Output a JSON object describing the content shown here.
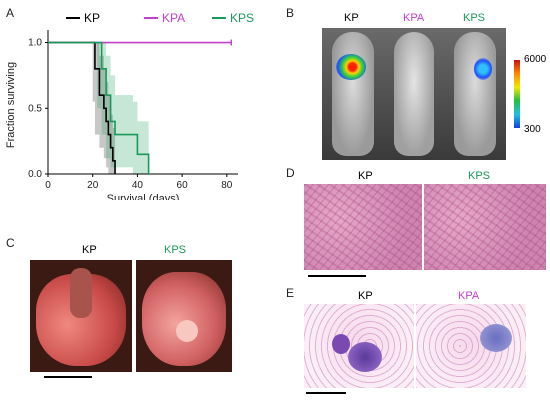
{
  "panels": {
    "A": "A",
    "B": "B",
    "C": "C",
    "D": "D",
    "E": "E"
  },
  "chart_data": {
    "type": "line",
    "title": "",
    "xlabel": "Survival (days)",
    "ylabel": "Fraction surviving",
    "xlim": [
      0,
      85
    ],
    "ylim": [
      0,
      1.05
    ],
    "xticks": [
      0,
      20,
      40,
      60,
      80
    ],
    "yticks": [
      0.0,
      0.5,
      1.0
    ],
    "legend_position": "top",
    "series": [
      {
        "name": "KP",
        "color": "#000000",
        "x": [
          0,
          20,
          21,
          23,
          25,
          26,
          27,
          28,
          29,
          30
        ],
        "y": [
          1.0,
          1.0,
          0.8,
          0.6,
          0.5,
          0.4,
          0.3,
          0.2,
          0.1,
          0.0
        ],
        "band_upper": [
          1.0,
          1.0,
          1.0,
          0.9,
          0.8,
          0.7,
          0.6,
          0.45,
          0.35,
          0.2
        ],
        "band_lower": [
          1.0,
          1.0,
          0.55,
          0.3,
          0.2,
          0.12,
          0.05,
          0.0,
          0.0,
          0.0
        ]
      },
      {
        "name": "KPA",
        "color": "#c23fd0",
        "x": [
          0,
          82
        ],
        "y": [
          1.0,
          1.0
        ]
      },
      {
        "name": "KPS",
        "color": "#1a9a5a",
        "x": [
          0,
          22,
          24,
          26,
          28,
          30,
          32,
          38,
          40,
          45
        ],
        "y": [
          1.0,
          1.0,
          0.8,
          0.6,
          0.4,
          0.3,
          0.3,
          0.3,
          0.15,
          0.0
        ],
        "band_upper": [
          1.0,
          1.0,
          1.0,
          0.9,
          0.75,
          0.6,
          0.6,
          0.55,
          0.4,
          0.25
        ],
        "band_lower": [
          1.0,
          1.0,
          0.5,
          0.3,
          0.12,
          0.05,
          0.05,
          0.05,
          0.0,
          0.0
        ]
      }
    ]
  },
  "panel_b": {
    "labels": [
      "KP",
      "KPA",
      "KPS"
    ],
    "colorbar_max": "6000",
    "colorbar_min": "300"
  },
  "panel_c": {
    "labels": [
      "KP",
      "KPS"
    ]
  },
  "panel_d": {
    "labels": [
      "KP",
      "KPS"
    ]
  },
  "panel_e": {
    "labels": [
      "KP",
      "KPA"
    ]
  },
  "colors": {
    "kp": "#000000",
    "kpa": "#c23fd0",
    "kps": "#1a9a5a"
  }
}
